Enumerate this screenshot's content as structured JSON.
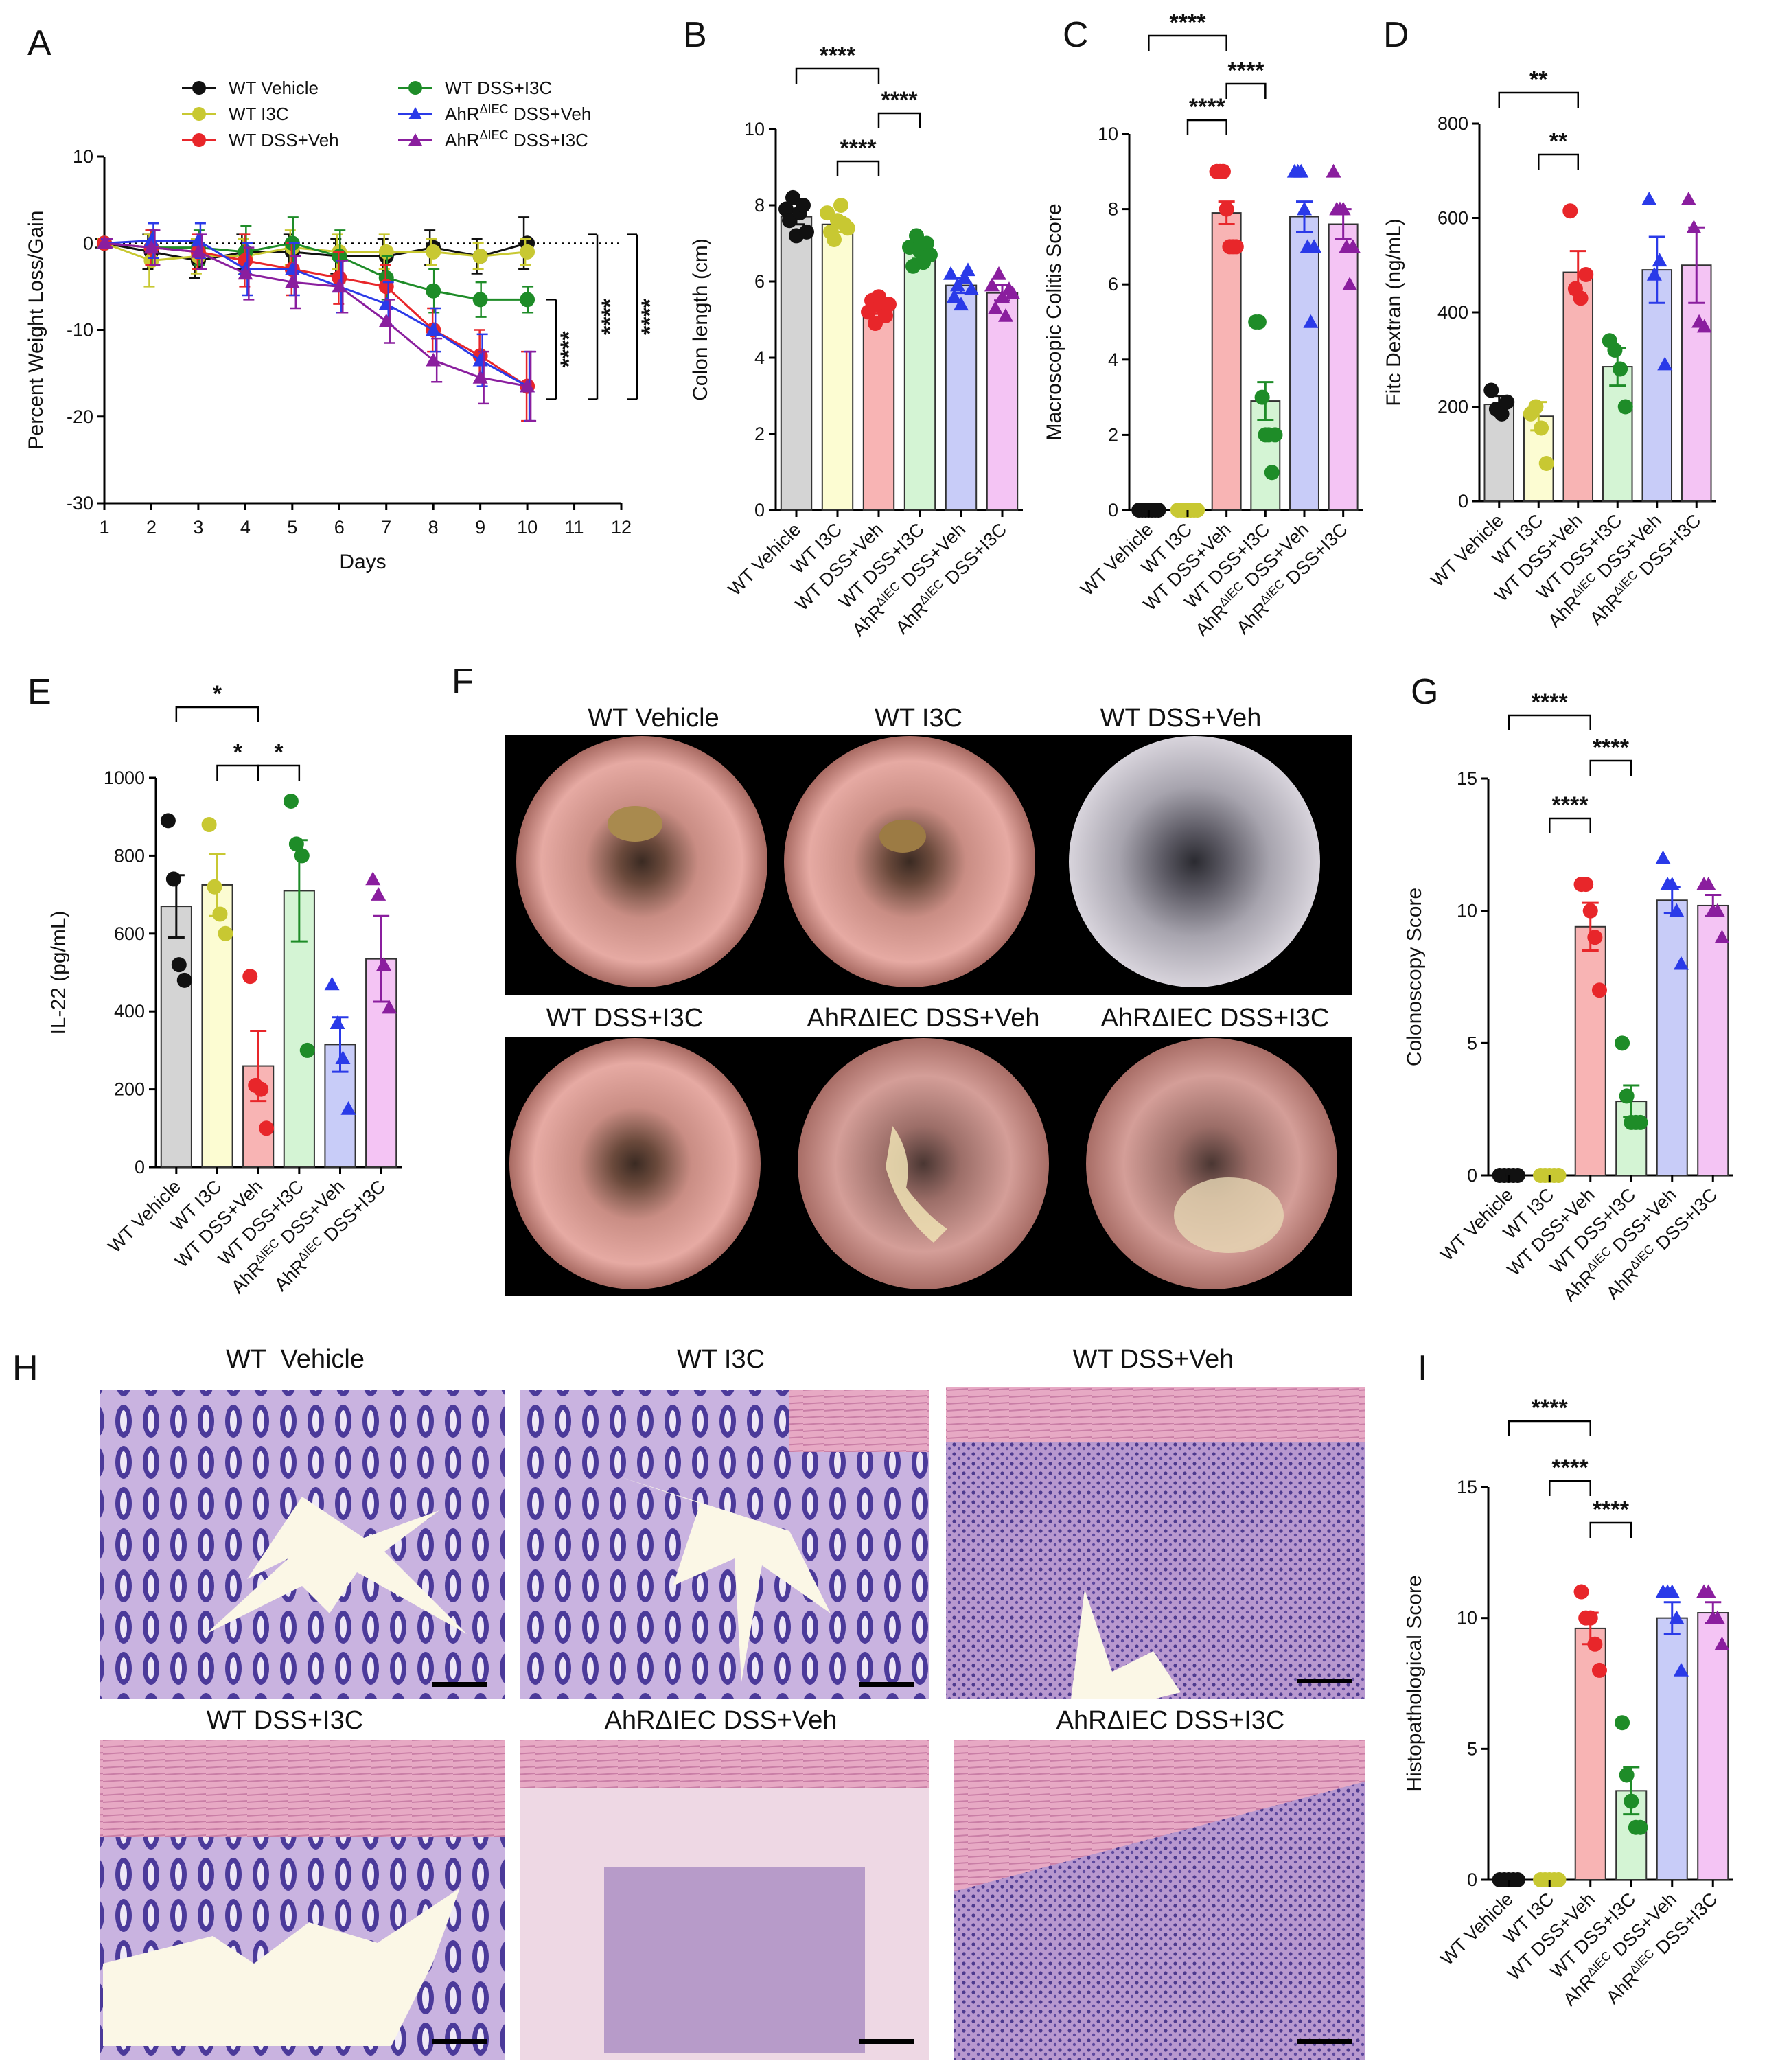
{
  "colors": {
    "WT Vehicle": "#111111",
    "WT I3C": "#c8c832",
    "WT DSS+Veh": "#e8262a",
    "WT DSS+I3C": "#1e8c28",
    "AhR DSS+Veh": "#2a3ae8",
    "AhR DSS+I3C": "#8a1e9e",
    "fills": [
      "#d4d4d4",
      "#fcfcd2",
      "#f8b4b4",
      "#d4f4d4",
      "#c8ccf8",
      "#f4c4f4"
    ]
  },
  "groups": [
    "WT Vehicle",
    "WT I3C",
    "WT DSS+Veh",
    "WT DSS+I3C",
    "AhRΔIEC DSS+Veh",
    "AhRΔIEC DSS+I3C"
  ],
  "chart_data": [
    {
      "panel": "A",
      "type": "line",
      "xlabel": "Days",
      "ylabel": "Percent Weight Loss/Gain",
      "xlim": [
        1,
        12
      ],
      "ylim": [
        -30,
        10
      ],
      "xticks": [
        1,
        2,
        3,
        4,
        5,
        6,
        7,
        8,
        9,
        10,
        11,
        12
      ],
      "yticks": [
        10,
        0,
        -10,
        -20,
        -30
      ],
      "x": [
        1,
        2,
        3,
        4,
        5,
        6,
        7,
        8,
        9,
        10
      ],
      "legend": [
        "WT Vehicle",
        "WT I3C",
        "WT DSS+Veh",
        "WT DSS+I3C",
        "AhRΔIEC DSS+Veh",
        "AhRΔIEC DSS+I3C"
      ],
      "series": [
        {
          "name": "WT Vehicle",
          "values": [
            0,
            -1,
            -2,
            -1,
            -1,
            -1.5,
            -1.5,
            -0.5,
            -1.5,
            0
          ],
          "err": [
            0.5,
            2,
            2,
            2,
            2,
            2,
            2,
            2,
            2,
            3
          ]
        },
        {
          "name": "WT I3C",
          "values": [
            0,
            -2,
            -1.5,
            -1.5,
            -0.5,
            -1,
            -1,
            -1,
            -1.5,
            -1
          ],
          "err": [
            0.5,
            3,
            2,
            2,
            2,
            2,
            2,
            1.5,
            1.5,
            1.5
          ]
        },
        {
          "name": "WT DSS+Veh",
          "values": [
            0,
            -0.5,
            -1,
            -2,
            -3,
            -4,
            -5,
            -10,
            -13,
            -16.5
          ],
          "err": [
            0.5,
            2,
            2,
            3,
            3,
            3,
            2.5,
            2.5,
            3,
            4
          ]
        },
        {
          "name": "WT DSS+I3C",
          "values": [
            0,
            -0.5,
            -0.5,
            -1,
            0,
            -1.5,
            -4,
            -5.5,
            -6.5,
            -6.5
          ],
          "err": [
            0.5,
            2,
            2,
            3,
            3,
            3,
            2.5,
            2.5,
            2,
            1.5
          ]
        },
        {
          "name": "AhRΔIEC DSS+Veh",
          "values": [
            0,
            0.3,
            0.3,
            -3,
            -3,
            -5,
            -7,
            -10,
            -13.5,
            -16.5
          ],
          "err": [
            0.5,
            2,
            2,
            3,
            3,
            3,
            2.5,
            2.5,
            3,
            4
          ]
        },
        {
          "name": "AhRΔIEC DSS+I3C",
          "values": [
            0,
            -0.5,
            -1,
            -3.5,
            -4.5,
            -5,
            -9,
            -13.5,
            -15.5,
            -16.5
          ],
          "err": [
            0.5,
            2,
            2,
            3,
            3,
            3,
            2.5,
            2.5,
            3,
            4
          ]
        }
      ],
      "significance": [
        "****",
        "****",
        "****"
      ]
    },
    {
      "panel": "B",
      "type": "bar",
      "ylabel": "Colon length (cm)",
      "ylim": [
        0,
        10
      ],
      "yticks": [
        0,
        2,
        4,
        6,
        8,
        10
      ],
      "categories": [
        "WT Vehicle",
        "WT I3C",
        "WT DSS+Veh",
        "WT DSS+I3C",
        "AhRΔIEC DSS+Veh",
        "AhRΔIEC DSS+I3C"
      ],
      "values": [
        7.7,
        7.5,
        5.3,
        6.8,
        5.9,
        5.7
      ],
      "errors": [
        0.2,
        0.2,
        0.15,
        0.2,
        0.2,
        0.2
      ],
      "points": [
        [
          7.9,
          7.6,
          8.2,
          7.2,
          7.8,
          8.0,
          7.3
        ],
        [
          7.8,
          7.3,
          7.1,
          7.6,
          8.0,
          7.5,
          7.4
        ],
        [
          5.2,
          5.5,
          4.9,
          5.6,
          5.3,
          5.1,
          5.4
        ],
        [
          6.9,
          6.4,
          7.2,
          6.8,
          6.5,
          7.0,
          6.7
        ],
        [
          6.2,
          5.6,
          5.9,
          5.4,
          6.1,
          6.3,
          5.8
        ],
        [
          5.9,
          5.3,
          6.2,
          5.6,
          5.1,
          5.8,
          5.7
        ]
      ],
      "significance": [
        {
          "label": "****",
          "from": 0,
          "to": 2
        },
        {
          "label": "****",
          "from": 1,
          "to": 2
        },
        {
          "label": "****",
          "from": 2,
          "to": 3
        }
      ]
    },
    {
      "panel": "C",
      "type": "bar",
      "ylabel": "Macroscopic Colitis Score",
      "ylim": [
        0,
        10
      ],
      "yticks": [
        0,
        2,
        4,
        6,
        8,
        10
      ],
      "categories": [
        "WT Vehicle",
        "WT I3C",
        "WT DSS+Veh",
        "WT DSS+I3C",
        "AhRΔIEC DSS+Veh",
        "AhRΔIEC DSS+I3C"
      ],
      "values": [
        0,
        0,
        7.9,
        2.9,
        7.8,
        7.6
      ],
      "errors": [
        0,
        0,
        0.3,
        0.5,
        0.4,
        0.4
      ],
      "points": [
        [
          0,
          0,
          0,
          0,
          0,
          0,
          0
        ],
        [
          0,
          0,
          0,
          0,
          0,
          0,
          0
        ],
        [
          9,
          9,
          9,
          8,
          7,
          7,
          7
        ],
        [
          5,
          5,
          3,
          2,
          2,
          1,
          2
        ],
        [
          9,
          9,
          9,
          8,
          7,
          5,
          7
        ],
        [
          9,
          8,
          8,
          8,
          7,
          6,
          7
        ]
      ],
      "significance": [
        {
          "label": "****",
          "from": 0,
          "to": 2
        },
        {
          "label": "****",
          "from": 1,
          "to": 2
        },
        {
          "label": "****",
          "from": 2,
          "to": 3
        }
      ]
    },
    {
      "panel": "D",
      "type": "bar",
      "ylabel": "Fitc Dextran (ng/mL)",
      "ylim": [
        0,
        800
      ],
      "yticks": [
        0,
        200,
        400,
        600,
        800
      ],
      "categories": [
        "WT Vehicle",
        "WT I3C",
        "WT DSS+Veh",
        "WT DSS+I3C",
        "AhRΔIEC DSS+Veh",
        "AhRΔIEC DSS+I3C"
      ],
      "values": [
        205,
        180,
        485,
        285,
        490,
        500
      ],
      "errors": [
        18,
        30,
        45,
        40,
        70,
        80
      ],
      "points": [
        [
          235,
          195,
          185,
          210
        ],
        [
          185,
          200,
          155,
          80
        ],
        [
          615,
          450,
          430,
          480
        ],
        [
          340,
          320,
          280,
          200
        ],
        [
          640,
          480,
          510,
          290
        ],
        [
          640,
          580,
          380,
          370
        ]
      ],
      "significance": [
        {
          "label": "**",
          "from": 0,
          "to": 2
        },
        {
          "label": "**",
          "from": 1,
          "to": 2
        }
      ]
    },
    {
      "panel": "E",
      "type": "bar",
      "ylabel": "IL-22 (pg/mL)",
      "ylim": [
        0,
        1000
      ],
      "yticks": [
        0,
        200,
        400,
        600,
        800,
        1000
      ],
      "categories": [
        "WT Vehicle",
        "WT I3C",
        "WT DSS+Veh",
        "WT DSS+I3C",
        "AhRΔIEC DSS+Veh",
        "AhRΔIEC DSS+I3C"
      ],
      "values": [
        670,
        725,
        260,
        710,
        315,
        535
      ],
      "errors": [
        80,
        80,
        90,
        130,
        70,
        110
      ],
      "points": [
        [
          890,
          740,
          520,
          480
        ],
        [
          880,
          720,
          650,
          600
        ],
        [
          490,
          210,
          200,
          100
        ],
        [
          940,
          830,
          800,
          300
        ],
        [
          470,
          370,
          280,
          150
        ],
        [
          740,
          700,
          520,
          410
        ]
      ],
      "significance": [
        {
          "label": "*",
          "from": 0,
          "to": 2
        },
        {
          "label": "*",
          "from": 1,
          "to": 2
        },
        {
          "label": "*",
          "from": 2,
          "to": 3
        }
      ]
    },
    {
      "panel": "G",
      "type": "bar",
      "ylabel": "Colonoscopy Score",
      "ylim": [
        0,
        15
      ],
      "yticks": [
        0,
        5,
        10,
        15
      ],
      "categories": [
        "WT Vehicle",
        "WT I3C",
        "WT DSS+Veh",
        "WT DSS+I3C",
        "AhRΔIEC DSS+Veh",
        "AhRΔIEC DSS+I3C"
      ],
      "values": [
        0,
        0,
        9.4,
        2.8,
        10.4,
        10.2
      ],
      "errors": [
        0,
        0,
        0.9,
        0.6,
        0.5,
        0.4
      ],
      "points": [
        [
          0,
          0,
          0,
          0,
          0
        ],
        [
          0,
          0,
          0,
          0,
          0
        ],
        [
          11,
          11,
          10,
          9,
          7
        ],
        [
          5,
          3,
          2,
          2,
          2
        ],
        [
          12,
          11,
          11,
          10,
          8
        ],
        [
          11,
          11,
          10,
          10,
          9
        ]
      ],
      "significance": [
        {
          "label": "****",
          "from": 0,
          "to": 2
        },
        {
          "label": "****",
          "from": 1,
          "to": 2
        },
        {
          "label": "****",
          "from": 2,
          "to": 3
        }
      ]
    },
    {
      "panel": "I",
      "type": "bar",
      "ylabel": "Histopathological Score",
      "ylim": [
        0,
        15
      ],
      "yticks": [
        0,
        5,
        10,
        15
      ],
      "categories": [
        "WT Vehicle",
        "WT I3C",
        "WT DSS+Veh",
        "WT DSS+I3C",
        "AhRΔIEC DSS+Veh",
        "AhRΔIEC DSS+I3C"
      ],
      "values": [
        0,
        0,
        9.6,
        3.4,
        10.0,
        10.2
      ],
      "errors": [
        0,
        0,
        0.6,
        0.9,
        0.6,
        0.4
      ],
      "points": [
        [
          0,
          0,
          0,
          0,
          0
        ],
        [
          0,
          0,
          0,
          0,
          0
        ],
        [
          11,
          10,
          10,
          9,
          8
        ],
        [
          6,
          4,
          3,
          2,
          2
        ],
        [
          11,
          11,
          11,
          10,
          8
        ],
        [
          11,
          11,
          10,
          10,
          9
        ]
      ],
      "significance": [
        {
          "label": "****",
          "from": 0,
          "to": 2
        },
        {
          "label": "****",
          "from": 1,
          "to": 2
        },
        {
          "label": "****",
          "from": 2,
          "to": 3
        }
      ]
    }
  ],
  "panels": {
    "A": "A",
    "B": "B",
    "C": "C",
    "D": "D",
    "E": "E",
    "F": "F",
    "G": "G",
    "H": "H",
    "I": "I"
  },
  "panel_F": {
    "titles": [
      "WT Vehicle",
      "WT I3C",
      "WT DSS+Veh",
      "WT DSS+I3C",
      "AhRΔIEC DSS+Veh",
      "AhRΔIEC DSS+I3C"
    ]
  },
  "panel_H": {
    "titles": [
      "WT  Vehicle",
      "WT I3C",
      "WT DSS+Veh",
      "WT DSS+I3C",
      "AhRΔIEC DSS+Veh",
      "AhRΔIEC DSS+I3C"
    ]
  }
}
